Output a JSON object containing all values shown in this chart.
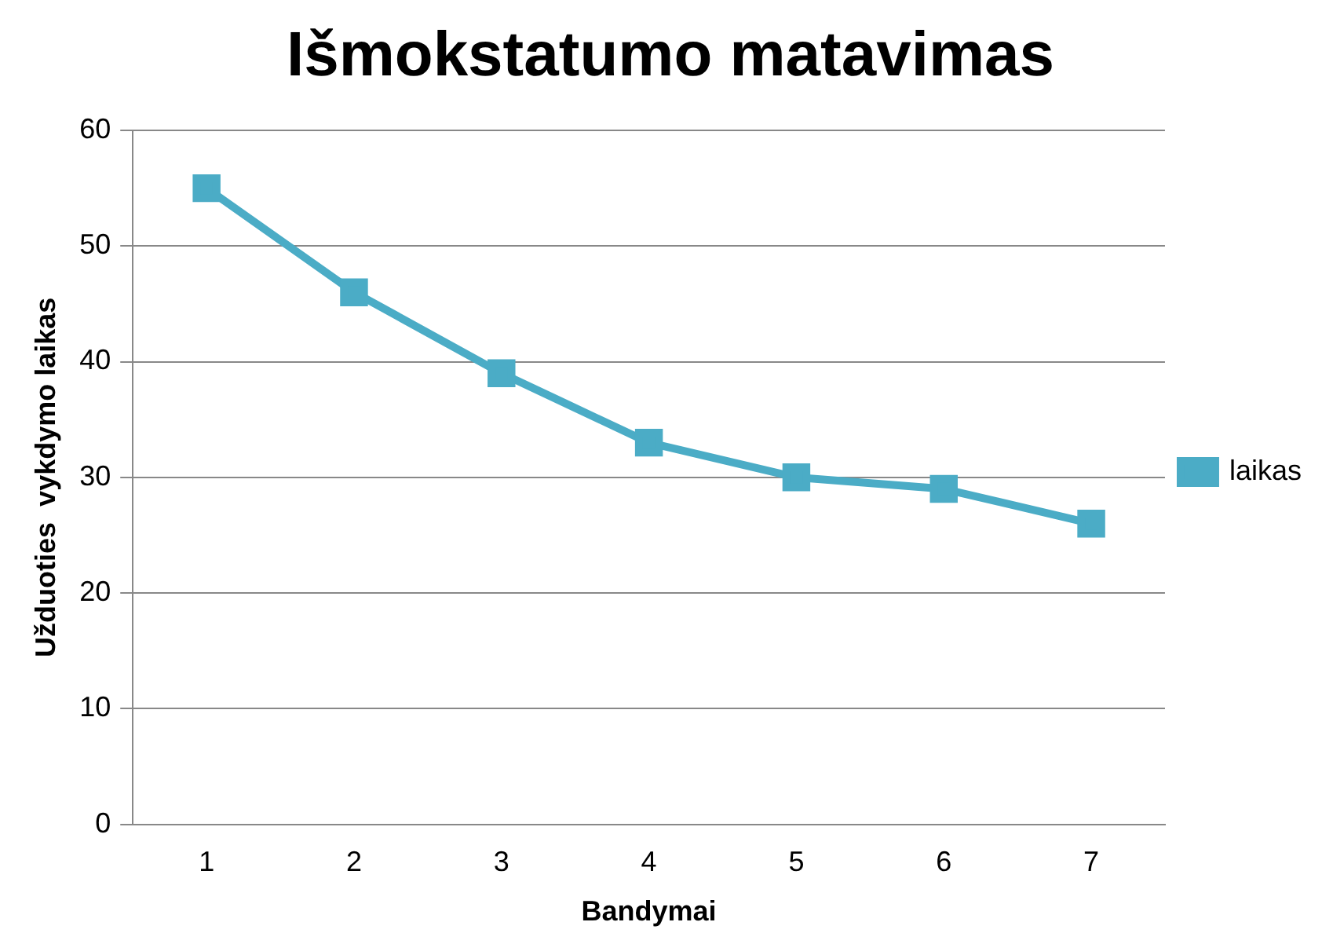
{
  "chart_data": {
    "type": "line",
    "title": "Išmokstatumo matavimas",
    "xlabel": "Bandymai",
    "ylabel": "Užduoties  vykdymo laikas",
    "categories": [
      "1",
      "2",
      "3",
      "4",
      "5",
      "6",
      "7"
    ],
    "series": [
      {
        "name": "laikas",
        "color": "#4bacc6",
        "values": [
          55,
          46,
          39,
          33,
          30,
          29,
          26
        ]
      }
    ],
    "ylim": [
      0,
      60
    ],
    "yticks": [
      0,
      10,
      20,
      30,
      40,
      50,
      60
    ],
    "grid": "y",
    "legend": "right",
    "marker": "square",
    "line_style": "solid"
  }
}
